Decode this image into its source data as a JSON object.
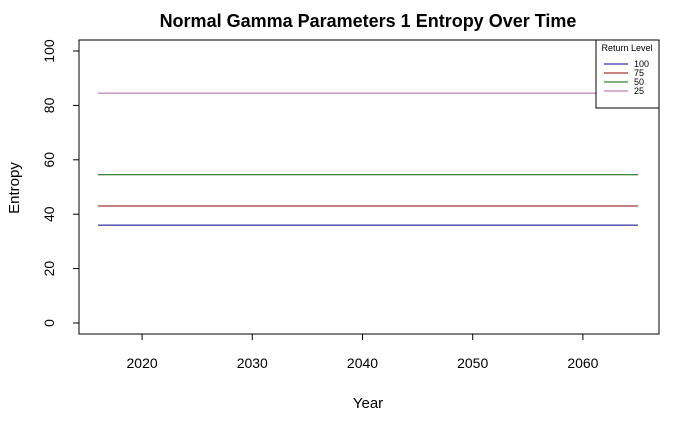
{
  "chart_data": {
    "type": "line",
    "title": "Normal Gamma Parameters 1 Entropy Over Time",
    "xlabel": "Year",
    "ylabel": "Entropy",
    "xlim": [
      2016,
      2065
    ],
    "ylim": [
      0,
      100
    ],
    "x_ticks": [
      2020,
      2030,
      2040,
      2050,
      2060
    ],
    "y_ticks": [
      0,
      20,
      40,
      60,
      80,
      100
    ],
    "grid": false,
    "legend": {
      "title": "Return Level",
      "position": "top-right"
    },
    "series": [
      {
        "name": "100",
        "color": "#00008B",
        "x": [
          2016,
          2065
        ],
        "y": [
          36,
          36
        ]
      },
      {
        "name": "75",
        "color": "#8B0000",
        "x": [
          2016,
          2065
        ],
        "y": [
          43,
          43
        ]
      },
      {
        "name": "50",
        "color": "#006400",
        "x": [
          2016,
          2065
        ],
        "y": [
          54.5,
          54.5
        ]
      },
      {
        "name": "25",
        "color": "#B060A0",
        "x": [
          2016,
          2065
        ],
        "y": [
          84.5,
          84.5
        ]
      }
    ]
  }
}
